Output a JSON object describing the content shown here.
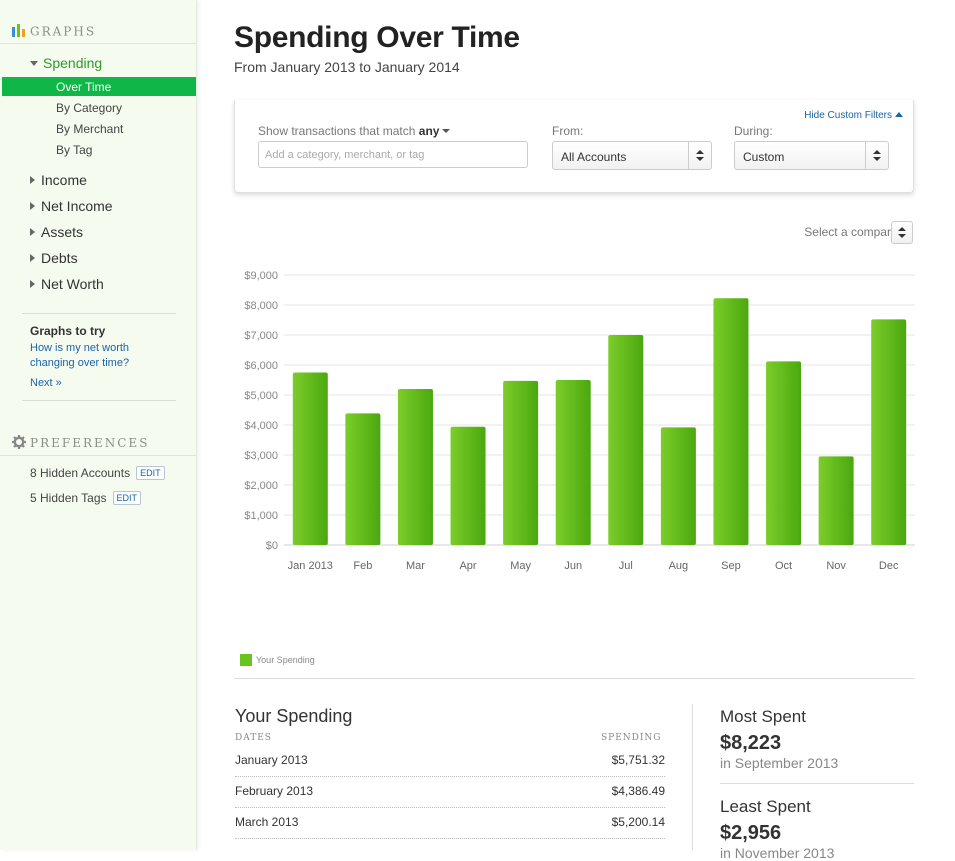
{
  "sidebar": {
    "graphs_header": "GRAPHS",
    "spending": {
      "label": "Spending",
      "items": [
        "Over Time",
        "By Category",
        "By Merchant",
        "By Tag"
      ]
    },
    "nav": [
      "Income",
      "Net Income",
      "Assets",
      "Debts",
      "Net Worth"
    ],
    "graphs_to_try": {
      "title": "Graphs to try",
      "link": "How is my net worth changing over time?",
      "next": "Next »"
    },
    "preferences_header": "PREFERENCES",
    "preferences": [
      {
        "label": "8 Hidden Accounts",
        "edit": "EDIT"
      },
      {
        "label": "5 Hidden Tags",
        "edit": "EDIT"
      }
    ]
  },
  "page": {
    "title": "Spending Over Time",
    "subtitle": "From January 2013 to January 2014"
  },
  "filters": {
    "hide_label": "Hide Custom Filters",
    "match_label": "Show transactions that match",
    "match_value": "any",
    "match_placeholder": "Add a category, merchant, or tag",
    "from_label": "From:",
    "from_value": "All Accounts",
    "during_label": "During:",
    "during_value": "Custom"
  },
  "comparison": {
    "label": "Select a comparison"
  },
  "colors": {
    "bar_top": "#7ccd2a",
    "bar_bottom": "#4aa80f",
    "accent": "#10b647",
    "link": "#1a64a8"
  },
  "chart_data": {
    "type": "bar",
    "categories": [
      "Jan 2013",
      "Feb",
      "Mar",
      "Apr",
      "May",
      "Jun",
      "Jul",
      "Aug",
      "Sep",
      "Oct",
      "Nov",
      "Dec"
    ],
    "series": [
      {
        "name": "Your Spending",
        "values": [
          5751.32,
          4386.49,
          5200.14,
          3940,
          5470,
          5500,
          7000,
          3920,
          8223,
          6120,
          2956,
          7520
        ]
      }
    ],
    "yticks": [
      "$0",
      "$1,000",
      "$2,000",
      "$3,000",
      "$4,000",
      "$5,000",
      "$6,000",
      "$7,000",
      "$8,000",
      "$9,000"
    ],
    "ylim": [
      0,
      9000
    ],
    "grid": true,
    "legend": "bottom-left"
  },
  "summary": {
    "title": "Your Spending",
    "col_dates": "DATES",
    "col_spending": "SPENDING",
    "rows": [
      {
        "date": "January 2013",
        "amount": "$5,751.32"
      },
      {
        "date": "February 2013",
        "amount": "$4,386.49"
      },
      {
        "date": "March 2013",
        "amount": "$5,200.14"
      }
    ],
    "most_label": "Most Spent",
    "most_value": "$8,223",
    "most_sub": "in September 2013",
    "least_label": "Least Spent",
    "least_value": "$2,956",
    "least_sub": "in November 2013"
  }
}
